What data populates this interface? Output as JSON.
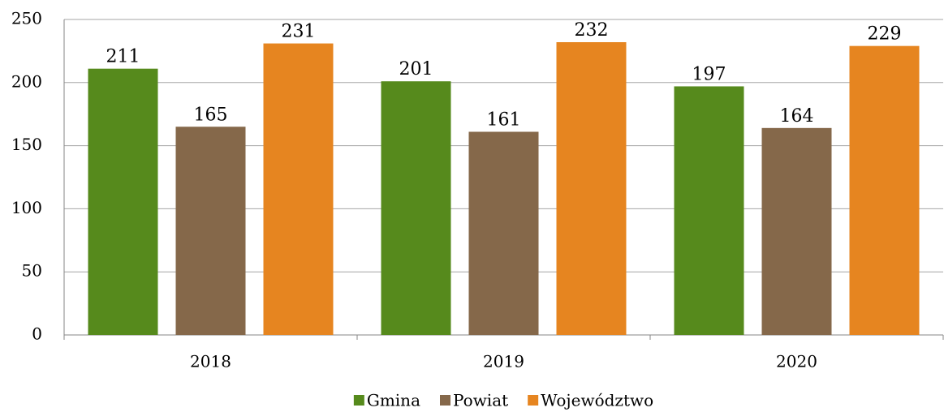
{
  "chart_data": {
    "type": "bar",
    "categories": [
      "2018",
      "2019",
      "2020"
    ],
    "series": [
      {
        "name": "Gmina",
        "color": "#568a1c",
        "values": [
          211,
          201,
          197
        ]
      },
      {
        "name": "Powiat",
        "color": "#85684a",
        "values": [
          165,
          161,
          164
        ]
      },
      {
        "name": "Województwo",
        "color": "#e68520",
        "values": [
          231,
          232,
          229
        ]
      }
    ],
    "ylim": [
      0,
      250
    ],
    "yticks": [
      0,
      50,
      100,
      150,
      200,
      250
    ],
    "grid": true,
    "legend": "bottom"
  }
}
